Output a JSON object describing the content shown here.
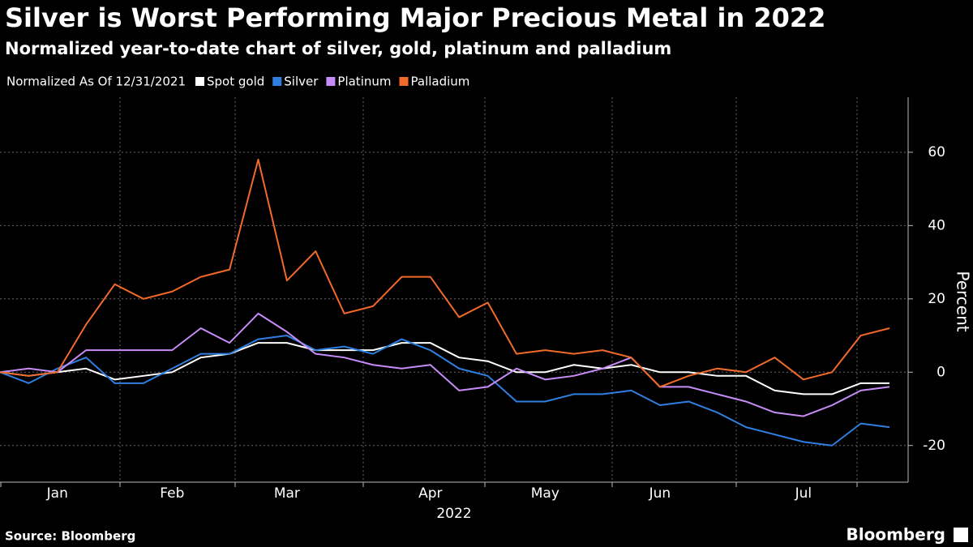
{
  "chart_data": {
    "type": "line",
    "title": "Silver is Worst Performing Major Precious Metal in 2022",
    "subtitle": "Normalized year-to-date chart of silver, gold, platinum and palladium",
    "legend_note": "Normalized As Of 12/31/2021",
    "x_label": "2022",
    "y_label": "Percent",
    "source": "Source: Bloomberg",
    "brand": "Bloomberg",
    "categories": [
      null,
      null,
      "Jan",
      null,
      null,
      null,
      "Feb",
      null,
      null,
      null,
      "Mar",
      null,
      null,
      null,
      null,
      "Apr",
      null,
      null,
      null,
      "May",
      null,
      null,
      null,
      "Jun",
      null,
      null,
      null,
      null,
      "Jul",
      null,
      null,
      null
    ],
    "series": [
      {
        "name": "Spot gold",
        "color": "#ffffff",
        "values": [
          0,
          -1,
          0,
          1,
          -2,
          -1,
          0,
          4,
          5,
          8,
          8,
          6,
          6,
          6,
          8,
          8,
          4,
          3,
          0,
          0,
          2,
          1,
          2,
          0,
          0,
          -1,
          -1,
          -5,
          -6,
          -6,
          -3,
          -3
        ]
      },
      {
        "name": "Silver",
        "color": "#2f7fe0",
        "values": [
          0,
          -3,
          1,
          4,
          -3,
          -3,
          1,
          5,
          5,
          9,
          10,
          6,
          7,
          5,
          9,
          6,
          1,
          -1,
          -8,
          -8,
          -6,
          -6,
          -5,
          -9,
          -8,
          -11,
          -15,
          -17,
          -19,
          -20,
          -14,
          -15
        ]
      },
      {
        "name": "Platinum",
        "color": "#c78cf7",
        "values": [
          0,
          1,
          0,
          6,
          6,
          6,
          6,
          12,
          8,
          16,
          11,
          5,
          4,
          2,
          1,
          2,
          -5,
          -4,
          1,
          -2,
          -1,
          1,
          4,
          -4,
          -4,
          -6,
          -8,
          -11,
          -12,
          -9,
          -5,
          -4
        ]
      },
      {
        "name": "Palladium",
        "color": "#f26a2a",
        "values": [
          0,
          -1,
          0,
          13,
          24,
          20,
          22,
          26,
          28,
          58,
          25,
          33,
          16,
          18,
          26,
          26,
          15,
          19,
          5,
          6,
          5,
          6,
          4,
          -4,
          -1,
          1,
          0,
          4,
          -2,
          0,
          10,
          12
        ]
      }
    ],
    "ylim": [
      -30,
      75
    ],
    "yticks": [
      -20,
      0,
      20,
      40,
      60
    ],
    "grid": true,
    "y_axis_side": "right"
  }
}
